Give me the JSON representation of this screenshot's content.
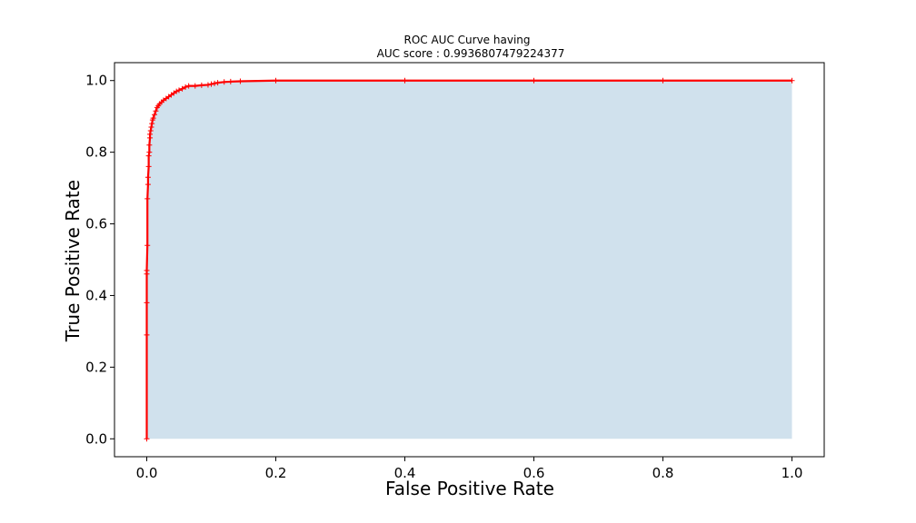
{
  "chart_data": {
    "type": "line",
    "title": "ROC AUC Curve having",
    "subtitle": "AUC score : 0.9936807479224377",
    "xlabel": "False Positive Rate",
    "ylabel": "True Positive Rate",
    "xlim": [
      -0.05,
      1.05
    ],
    "ylim": [
      -0.05,
      1.05
    ],
    "xticks": [
      "0.0",
      "0.2",
      "0.4",
      "0.6",
      "0.8",
      "1.0"
    ],
    "yticks": [
      "0.0",
      "0.2",
      "0.4",
      "0.6",
      "0.8",
      "1.0"
    ],
    "grid": false,
    "area_fill_color": "#d0e1ed",
    "line_color": "#ff0000",
    "series": [
      {
        "x": [
          0.0,
          0.0,
          0.0,
          0.0,
          0.0,
          0.001,
          0.001,
          0.002,
          0.002,
          0.003,
          0.003,
          0.004,
          0.004,
          0.005,
          0.005,
          0.006,
          0.007,
          0.008,
          0.009,
          0.01,
          0.012,
          0.014,
          0.016,
          0.018,
          0.02,
          0.023,
          0.026,
          0.03,
          0.034,
          0.038,
          0.042,
          0.046,
          0.05,
          0.055,
          0.06,
          0.065,
          0.075,
          0.085,
          0.095,
          0.1,
          0.105,
          0.11,
          0.12,
          0.13,
          0.145,
          0.2,
          0.4,
          0.6,
          0.8,
          1.0
        ],
        "y": [
          0.0,
          0.29,
          0.38,
          0.46,
          0.47,
          0.54,
          0.67,
          0.71,
          0.73,
          0.76,
          0.79,
          0.8,
          0.82,
          0.84,
          0.85,
          0.86,
          0.87,
          0.88,
          0.89,
          0.895,
          0.905,
          0.915,
          0.925,
          0.93,
          0.935,
          0.94,
          0.945,
          0.95,
          0.955,
          0.96,
          0.965,
          0.97,
          0.973,
          0.977,
          0.982,
          0.985,
          0.985,
          0.987,
          0.988,
          0.99,
          0.992,
          0.994,
          0.996,
          0.997,
          0.998,
          1.0,
          1.0,
          1.0,
          1.0,
          1.0
        ]
      }
    ]
  }
}
